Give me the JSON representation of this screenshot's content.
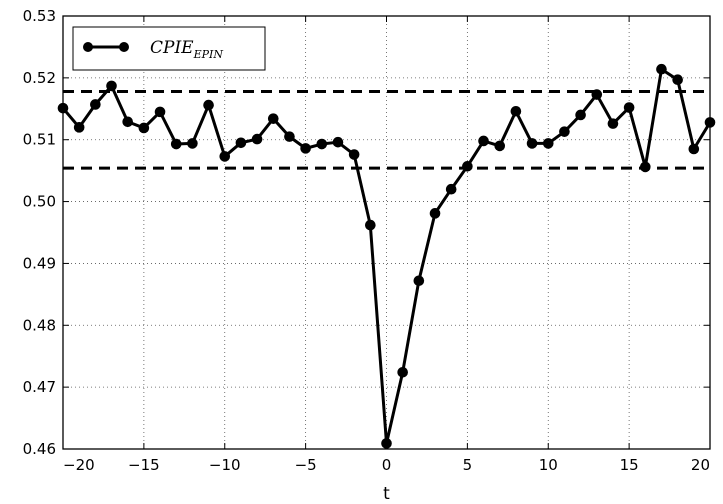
{
  "chart_data": {
    "type": "line",
    "title": "",
    "xlabel": "t",
    "ylabel": "",
    "xlim": [
      -20,
      20
    ],
    "ylim": [
      0.46,
      0.53
    ],
    "x_ticks": [
      -20,
      -15,
      -10,
      -5,
      0,
      5,
      10,
      15,
      20
    ],
    "x_tick_labels": [
      "−20",
      "−15",
      "−10",
      "−5",
      "0",
      "5",
      "10",
      "15",
      "20"
    ],
    "y_ticks": [
      0.46,
      0.47,
      0.48,
      0.49,
      0.5,
      0.51,
      0.52,
      0.53
    ],
    "y_tick_labels": [
      "0.46",
      "0.47",
      "0.48",
      "0.49",
      "0.50",
      "0.51",
      "0.52",
      "0.53"
    ],
    "grid": true,
    "legend_position": "top-left",
    "series": [
      {
        "name": "CPIE",
        "name_subscript": "EPIN",
        "color": "#000000",
        "marker": "circle",
        "x": [
          -20,
          -19,
          -18,
          -17,
          -16,
          -15,
          -14,
          -13,
          -12,
          -11,
          -10,
          -9,
          -8,
          -7,
          -6,
          -5,
          -4,
          -3,
          -2,
          -1,
          0,
          1,
          2,
          3,
          4,
          5,
          6,
          7,
          8,
          9,
          10,
          11,
          12,
          13,
          14,
          15,
          16,
          17,
          18,
          19,
          20
        ],
        "y": [
          0.5151,
          0.512,
          0.5157,
          0.5187,
          0.5129,
          0.5119,
          0.5145,
          0.5093,
          0.5094,
          0.5156,
          0.5073,
          0.5095,
          0.5101,
          0.5134,
          0.5105,
          0.5086,
          0.5093,
          0.5096,
          0.5076,
          0.4962,
          0.4609,
          0.4724,
          0.4872,
          0.4981,
          0.502,
          0.5057,
          0.5098,
          0.509,
          0.5146,
          0.5094,
          0.5094,
          0.5113,
          0.514,
          0.5173,
          0.5126,
          0.5152,
          0.5056,
          0.5214,
          0.5197,
          0.5085,
          0.5128
        ]
      }
    ],
    "reference_lines": [
      {
        "orientation": "horizontal",
        "y": 0.5178,
        "style": "dashed",
        "color": "#000000"
      },
      {
        "orientation": "horizontal",
        "y": 0.5054,
        "style": "dashed",
        "color": "#000000"
      }
    ]
  }
}
